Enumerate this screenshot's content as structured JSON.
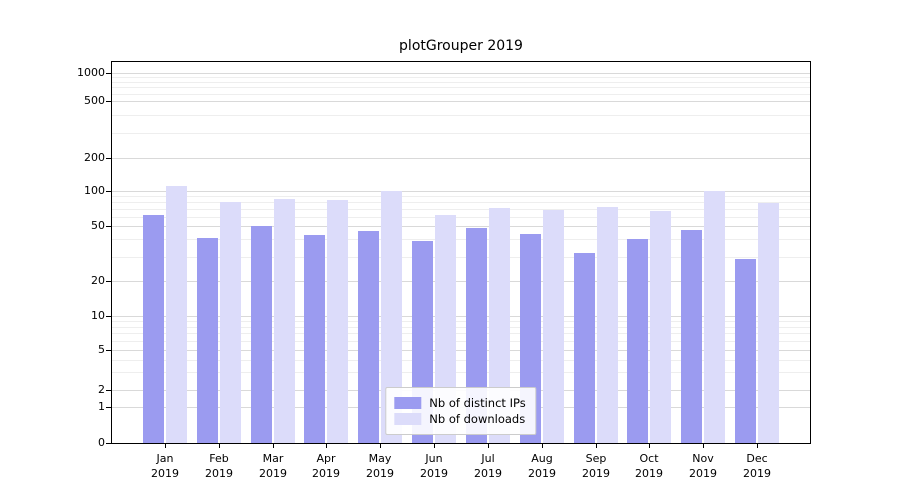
{
  "chart_data": {
    "type": "bar",
    "title": "plotGrouper 2019",
    "scale": "symlog",
    "categories": [
      "Jan",
      "Feb",
      "Mar",
      "Apr",
      "May",
      "Jun",
      "Jul",
      "Aug",
      "Sep",
      "Oct",
      "Nov",
      "Dec"
    ],
    "year_label": "2019",
    "series": [
      {
        "name": "Nb of distinct IPs",
        "color": "#9b9bf0",
        "values": [
          62,
          41,
          50,
          43,
          46,
          39,
          48,
          44,
          32,
          40,
          47,
          29
        ]
      },
      {
        "name": "Nb of downloads",
        "color": "#dcdcfa",
        "values": [
          112,
          80,
          86,
          83,
          101,
          62,
          71,
          69,
          73,
          67,
          100,
          79
        ]
      }
    ],
    "yticks": [
      0,
      1,
      2,
      5,
      10,
      20,
      50,
      100,
      200,
      500,
      1000
    ],
    "yticks_minor": [
      3,
      4,
      6,
      7,
      8,
      9,
      30,
      40,
      60,
      70,
      80,
      90,
      300,
      400,
      600,
      700,
      800,
      900
    ],
    "ylim": [
      0,
      1300
    ],
    "grid": true,
    "legend_position": "lower center"
  },
  "colors": {
    "major_grid": "#d9d9d9",
    "minor_grid": "#eeeeee",
    "axis": "#000000",
    "legend_border": "#cccccc"
  }
}
